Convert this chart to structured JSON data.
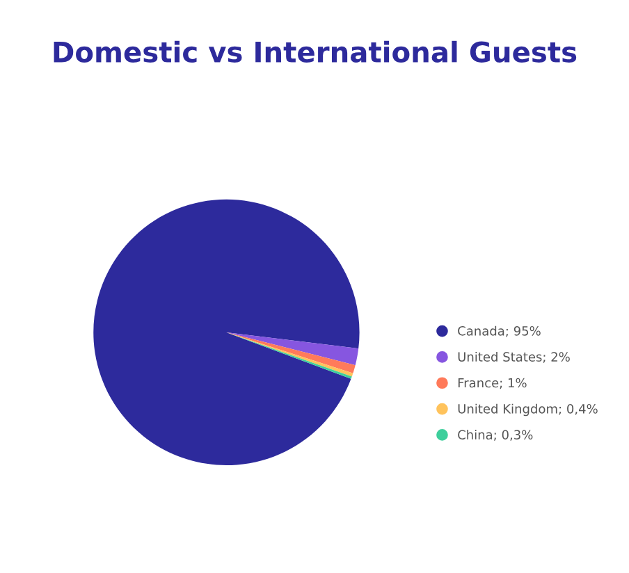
{
  "chart_data": {
    "type": "pie",
    "title": "Domestic vs International Guests",
    "categories": [
      "Canada",
      "United States",
      "France",
      "United Kingdom",
      "China"
    ],
    "values": [
      95,
      2,
      1,
      0.4,
      0.3
    ],
    "value_labels": [
      "95%",
      "2%",
      "1%",
      "0,4%",
      "0,3%"
    ],
    "colors": [
      "#2d2a9c",
      "#8656e0",
      "#ff7a5a",
      "#ffc35c",
      "#3ecf9c"
    ],
    "legend": "right"
  }
}
